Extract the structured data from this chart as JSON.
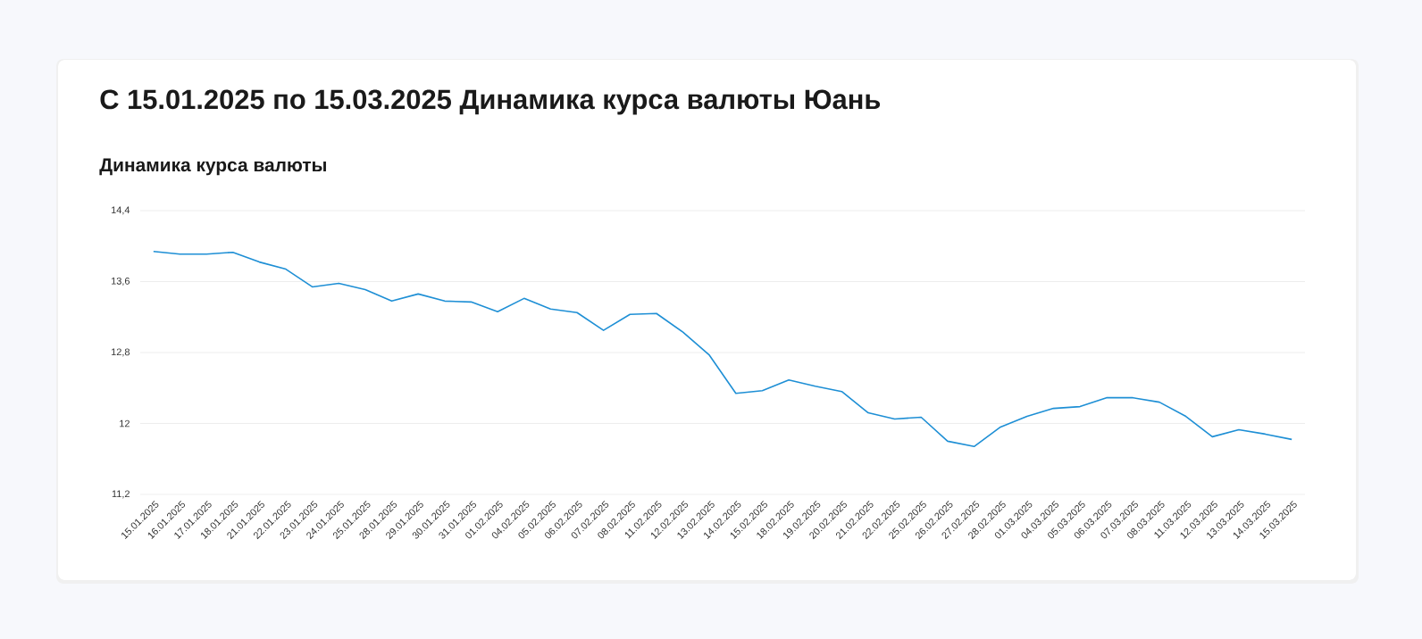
{
  "chart_data": {
    "type": "line",
    "title": "С 15.01.2025 по 15.03.2025 Динамика курса валюты Юань",
    "subtitle": "Динамика курса валюты",
    "categories": [
      "15.01.2025",
      "16.01.2025",
      "17.01.2025",
      "18.01.2025",
      "21.01.2025",
      "22.01.2025",
      "23.01.2025",
      "24.01.2025",
      "25.01.2025",
      "28.01.2025",
      "29.01.2025",
      "30.01.2025",
      "31.01.2025",
      "01.02.2025",
      "04.02.2025",
      "05.02.2025",
      "06.02.2025",
      "07.02.2025",
      "08.02.2025",
      "11.02.2025",
      "12.02.2025",
      "13.02.2025",
      "14.02.2025",
      "15.02.2025",
      "18.02.2025",
      "19.02.2025",
      "20.02.2025",
      "21.02.2025",
      "22.02.2025",
      "25.02.2025",
      "26.02.2025",
      "27.02.2025",
      "28.02.2025",
      "01.03.2025",
      "04.03.2025",
      "05.03.2025",
      "06.03.2025",
      "07.03.2025",
      "08.03.2025",
      "11.03.2025",
      "12.03.2025",
      "13.03.2025",
      "14.03.2025",
      "15.03.2025"
    ],
    "series": [
      {
        "color": "#1e8fd5",
        "values": [
          13.94,
          13.91,
          13.91,
          13.93,
          13.82,
          13.74,
          13.54,
          13.58,
          13.51,
          13.38,
          13.46,
          13.38,
          13.37,
          13.26,
          13.41,
          13.29,
          13.25,
          13.05,
          13.23,
          13.24,
          13.03,
          12.77,
          12.34,
          12.37,
          12.49,
          12.42,
          12.36,
          12.12,
          12.05,
          12.07,
          11.8,
          11.74,
          11.96,
          12.08,
          12.17,
          12.19,
          12.29,
          12.29,
          12.24,
          12.08,
          11.85,
          11.93,
          11.88,
          11.82
        ]
      }
    ],
    "ylim": [
      11.2,
      14.4
    ],
    "yticks": [
      {
        "value": 11.2,
        "label": "11,2"
      },
      12,
      {
        "value": 12.8,
        "label": "12,8"
      },
      {
        "value": 13.6,
        "label": "13,6"
      },
      {
        "value": 14.4,
        "label": "14,4"
      }
    ],
    "grid": "y"
  }
}
